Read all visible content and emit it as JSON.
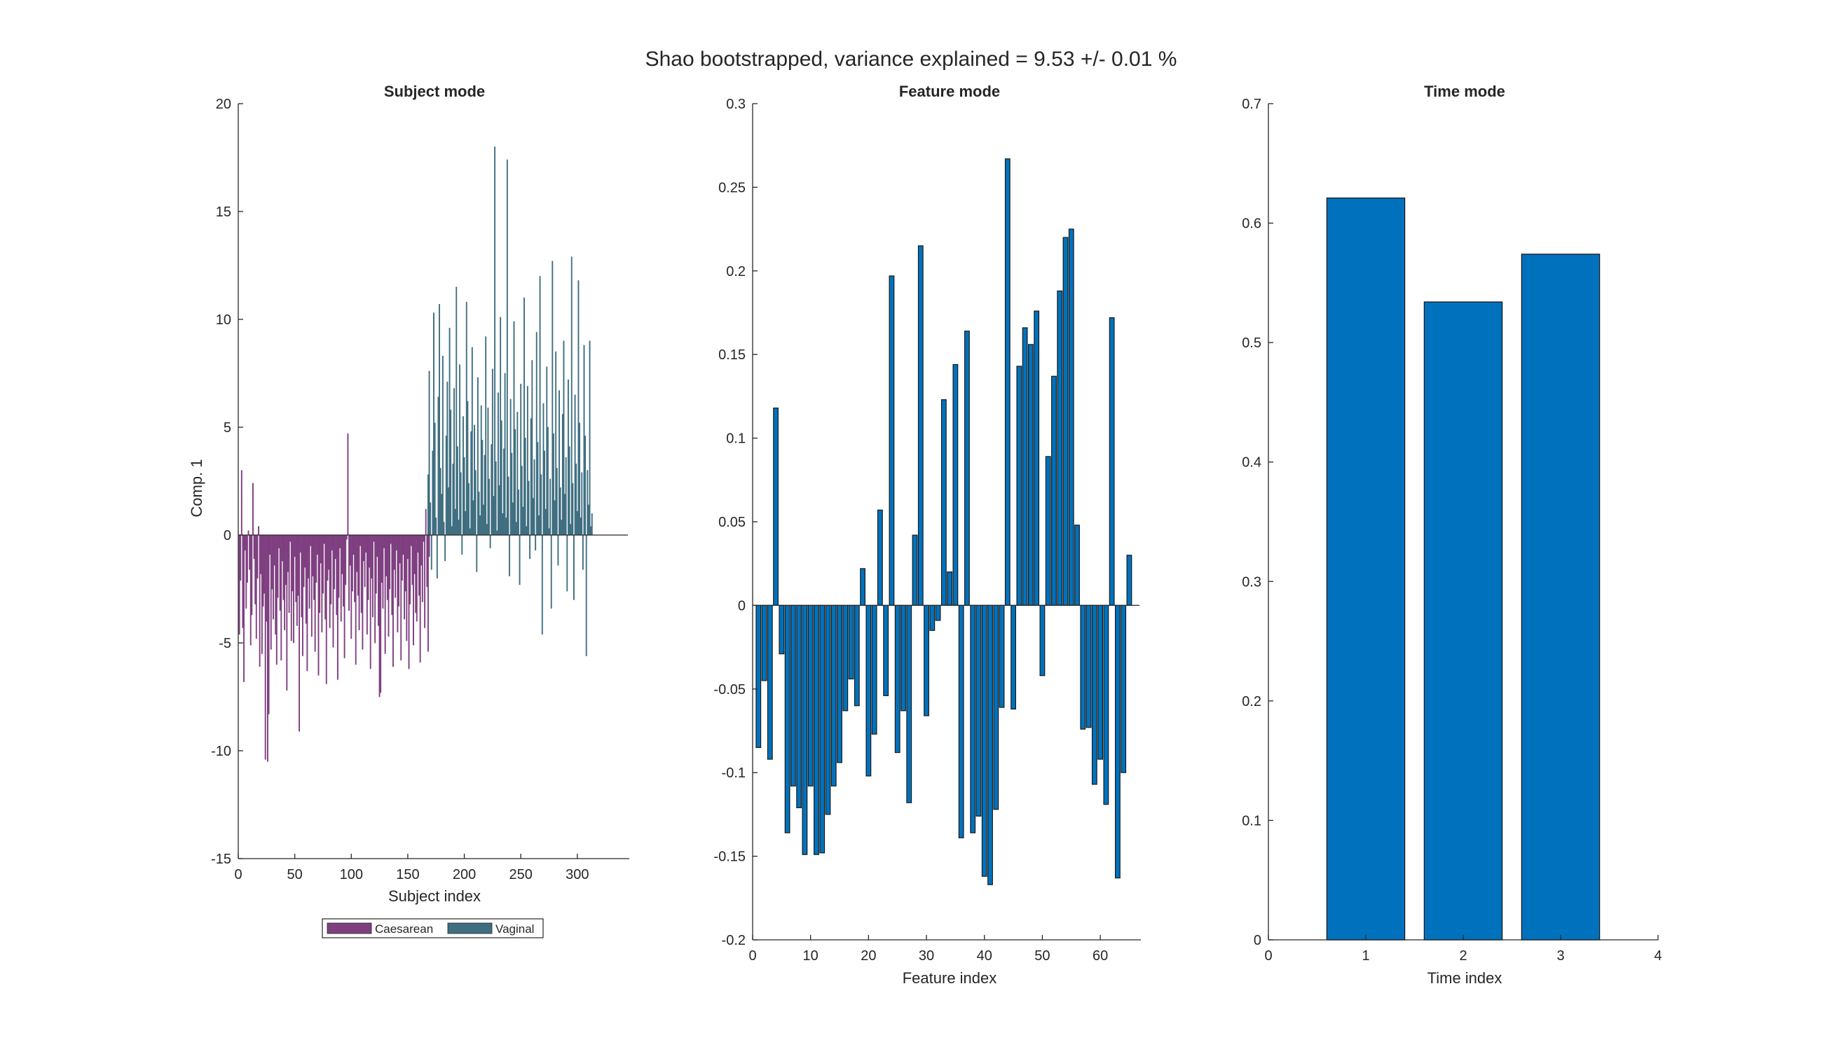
{
  "figure": {
    "title": "Shao bootstrapped, variance explained = 9.53 +/- 0.01 %"
  },
  "chart_data": [
    {
      "type": "bar",
      "title": "Subject mode",
      "xlabel": "Subject index",
      "ylabel": "Comp. 1",
      "xlim": [
        0,
        346
      ],
      "ylim": [
        -15,
        20
      ],
      "xticks": [
        0,
        50,
        100,
        150,
        200,
        250,
        300
      ],
      "yticks": [
        -15,
        -10,
        -5,
        0,
        5,
        10,
        15,
        20
      ],
      "legend": {
        "placement": "bottom",
        "entries": [
          "Caesarean",
          "Vaginal"
        ]
      },
      "series": [
        {
          "name": "Caesarean",
          "color": "#7e3f80",
          "x_start": 1,
          "values": [
            -4.6,
            -2.1,
            3.0,
            -4.3,
            -6.8,
            -0.7,
            -3.4,
            -2.2,
            0.2,
            -1.6,
            -5.1,
            -3.7,
            2.4,
            -1.1,
            -3.2,
            -4.8,
            -2.0,
            0.4,
            -6.1,
            -1.8,
            -5.5,
            -3.3,
            -2.7,
            -10.4,
            -4.0,
            -10.5,
            -8.3,
            -0.9,
            -5.3,
            -2.5,
            -3.9,
            -1.4,
            -4.6,
            -6.0,
            -2.9,
            -0.6,
            -3.5,
            -5.8,
            -1.2,
            -3.0,
            -4.4,
            -2.3,
            -7.2,
            -1.7,
            -3.6,
            -0.3,
            -4.9,
            -2.6,
            -5.0,
            -1.0,
            -3.1,
            -4.2,
            -2.8,
            -9.1,
            -0.8,
            -3.8,
            -5.6,
            -2.4,
            -1.5,
            -4.1,
            -6.3,
            -2.0,
            -3.4,
            -0.5,
            -4.7,
            -1.9,
            -3.0,
            -5.4,
            -2.2,
            -0.9,
            -6.5,
            -3.6,
            -1.3,
            -4.5,
            -2.7,
            -0.4,
            -3.9,
            -6.9,
            -2.1,
            -1.6,
            -4.3,
            -3.2,
            -0.7,
            -5.2,
            -2.5,
            -1.1,
            -3.7,
            -6.7,
            -2.9,
            -0.6,
            -4.0,
            -1.8,
            -3.3,
            -5.7,
            -2.3,
            -0.2,
            4.7,
            -3.5,
            -1.4,
            -4.8,
            -2.6,
            -0.9,
            -3.1,
            -6.0,
            -1.7,
            -2.8,
            -4.4,
            -0.5,
            -3.6,
            -5.3,
            -1.2,
            -2.4,
            -0.8,
            -4.6,
            -3.0,
            -1.5,
            -6.2,
            -2.0,
            -3.8,
            -0.3,
            -5.0,
            -2.7,
            -1.0,
            -4.2,
            -7.5,
            -7.3,
            -2.2,
            -3.4,
            -0.6,
            -5.5,
            -1.9,
            -3.0,
            -4.7,
            -2.5,
            -0.4,
            -3.7,
            -6.1,
            -1.6,
            -2.9,
            -0.7,
            -4.5,
            -3.3,
            -1.3,
            -5.8,
            -2.1,
            -0.9,
            -3.9,
            -2.6,
            -4.9,
            -1.1,
            -6.2,
            -3.2,
            -0.5,
            -2.3,
            -5.1,
            -1.8,
            -3.6,
            -4.0,
            -0.8,
            -2.8,
            -5.9,
            -1.4,
            -3.1,
            -0.3,
            -4.3,
            1.2,
            -2.4,
            -5.4,
            -1.0
          ]
        },
        {
          "name": "Vaginal",
          "color": "#3f6e80",
          "x_start": 168,
          "values": [
            2.8,
            7.6,
            1.5,
            -1.6,
            3.9,
            10.3,
            5.2,
            0.8,
            -2.0,
            6.4,
            10.7,
            3.1,
            1.9,
            8.3,
            0.6,
            -1.2,
            4.6,
            7.1,
            2.2,
            9.6,
            5.8,
            0.4,
            3.3,
            6.8,
            1.2,
            11.5,
            4.1,
            0.7,
            7.9,
            2.9,
            -0.9,
            5.5,
            3.6,
            1.1,
            10.8,
            6.2,
            2.4,
            0.3,
            4.8,
            8.7,
            1.6,
            5.1,
            3.0,
            -1.7,
            7.3,
            2.0,
            0.9,
            6.0,
            4.4,
            1.4,
            3.7,
            9.2,
            0.5,
            5.9,
            2.6,
            -0.6,
            4.2,
            7.7,
            1.8,
            18.0,
            3.4,
            0.2,
            6.6,
            2.3,
            10.1,
            5.3,
            1.0,
            4.0,
            7.5,
            0.8,
            17.4,
            2.7,
            -1.9,
            6.3,
            3.8,
            1.5,
            9.9,
            4.9,
            0.6,
            5.7,
            2.1,
            -2.3,
            7.0,
            3.2,
            1.3,
            11.0,
            4.5,
            0.4,
            6.9,
            2.5,
            -1.1,
            5.4,
            8.1,
            1.7,
            3.5,
            -0.7,
            9.4,
            4.3,
            0.9,
            12.0,
            2.8,
            -4.6,
            6.1,
            3.9,
            1.2,
            7.8,
            5.0,
            0.3,
            2.6,
            -3.4,
            12.7,
            4.7,
            1.6,
            8.5,
            3.1,
            -1.4,
            6.7,
            2.2,
            0.7,
            5.6,
            9.0,
            1.9,
            3.6,
            -2.6,
            7.2,
            4.1,
            0.5,
            12.9,
            2.4,
            -3.0,
            6.5,
            3.3,
            1.1,
            11.8,
            5.2,
            0.8,
            2.9,
            -1.6,
            8.8,
            4.6,
            -5.6,
            3.0,
            1.4,
            9.0,
            0.4,
            1.0
          ]
        }
      ]
    },
    {
      "type": "bar",
      "title": "Feature mode",
      "xlabel": "Feature index",
      "ylabel": "",
      "xlim": [
        0,
        67
      ],
      "ylim": [
        -0.2,
        0.3
      ],
      "xticks": [
        0,
        10,
        20,
        30,
        40,
        50,
        60
      ],
      "yticks": [
        -0.2,
        -0.15,
        -0.1,
        -0.05,
        0,
        0.05,
        0.1,
        0.15,
        0.2,
        0.25,
        0.3
      ],
      "color": "#0072bd",
      "x_start": 1,
      "values": [
        -0.085,
        -0.045,
        -0.092,
        0.118,
        -0.029,
        -0.136,
        -0.108,
        -0.121,
        -0.149,
        -0.108,
        -0.149,
        -0.148,
        -0.125,
        -0.108,
        -0.094,
        -0.063,
        -0.044,
        -0.06,
        0.022,
        -0.102,
        -0.077,
        0.057,
        -0.054,
        0.197,
        -0.088,
        -0.063,
        -0.118,
        0.042,
        0.215,
        -0.066,
        -0.015,
        -0.009,
        0.123,
        0.02,
        0.144,
        -0.139,
        0.164,
        -0.136,
        -0.126,
        -0.162,
        -0.167,
        -0.122,
        -0.061,
        0.267,
        -0.062,
        0.143,
        0.166,
        0.156,
        0.176,
        -0.042,
        0.089,
        0.137,
        0.188,
        0.22,
        0.225,
        0.048,
        -0.074,
        -0.073,
        -0.107,
        -0.092,
        -0.119,
        0.172,
        -0.163,
        -0.1,
        0.03
      ]
    },
    {
      "type": "bar",
      "title": "Time mode",
      "xlabel": "Time index",
      "ylabel": "",
      "xlim": [
        0,
        4
      ],
      "ylim": [
        0,
        0.7
      ],
      "xticks": [
        0,
        1,
        2,
        3,
        4
      ],
      "yticks": [
        0,
        0.1,
        0.2,
        0.3,
        0.4,
        0.5,
        0.6,
        0.7
      ],
      "color": "#0072bd",
      "categories": [
        1,
        2,
        3
      ],
      "values": [
        0.621,
        0.534,
        0.574
      ]
    }
  ]
}
